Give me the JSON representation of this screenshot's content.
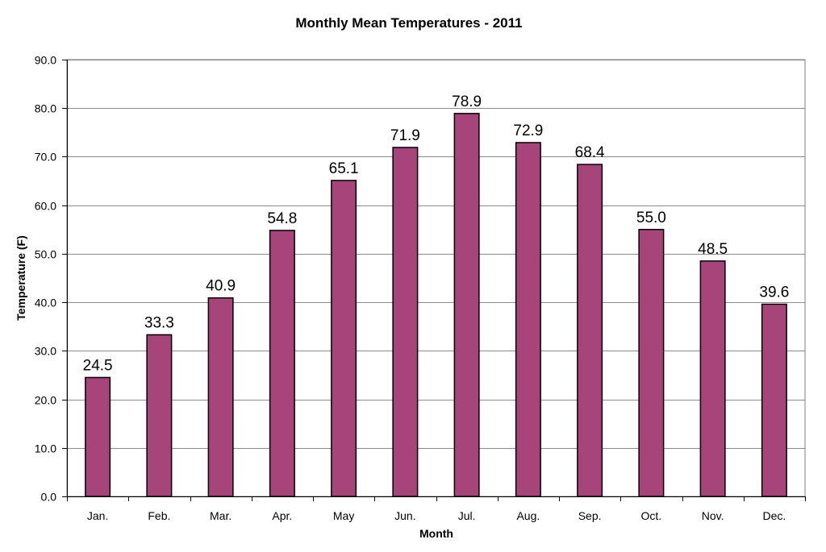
{
  "chart_data": {
    "type": "bar",
    "title": "Monthly Mean Temperatures - 2011",
    "xlabel": "Month",
    "ylabel": "Temperature (F)",
    "categories": [
      "Jan.",
      "Feb.",
      "Mar.",
      "Apr.",
      "May",
      "Jun.",
      "Jul.",
      "Aug.",
      "Sep.",
      "Oct.",
      "Nov.",
      "Dec."
    ],
    "values": [
      24.5,
      33.3,
      40.9,
      54.8,
      65.1,
      71.9,
      78.9,
      72.9,
      68.4,
      55.0,
      48.5,
      39.6
    ],
    "data_labels": [
      "24.5",
      "33.3",
      "40.9",
      "54.8",
      "65.1",
      "71.9",
      "78.9",
      "72.9",
      "68.4",
      "55.0",
      "48.5",
      "39.6"
    ],
    "ylim": [
      0,
      90
    ],
    "y_ticks": [
      "0.0",
      "10.0",
      "20.0",
      "30.0",
      "40.0",
      "50.0",
      "60.0",
      "70.0",
      "80.0",
      "90.0"
    ],
    "grid": true,
    "legend": "none",
    "colors": {
      "bar_fill": "#A7447A",
      "bar_stroke": "#000000",
      "gridline": "#8C8C8C",
      "plot_border": "#808080",
      "axis": "#000000"
    }
  }
}
